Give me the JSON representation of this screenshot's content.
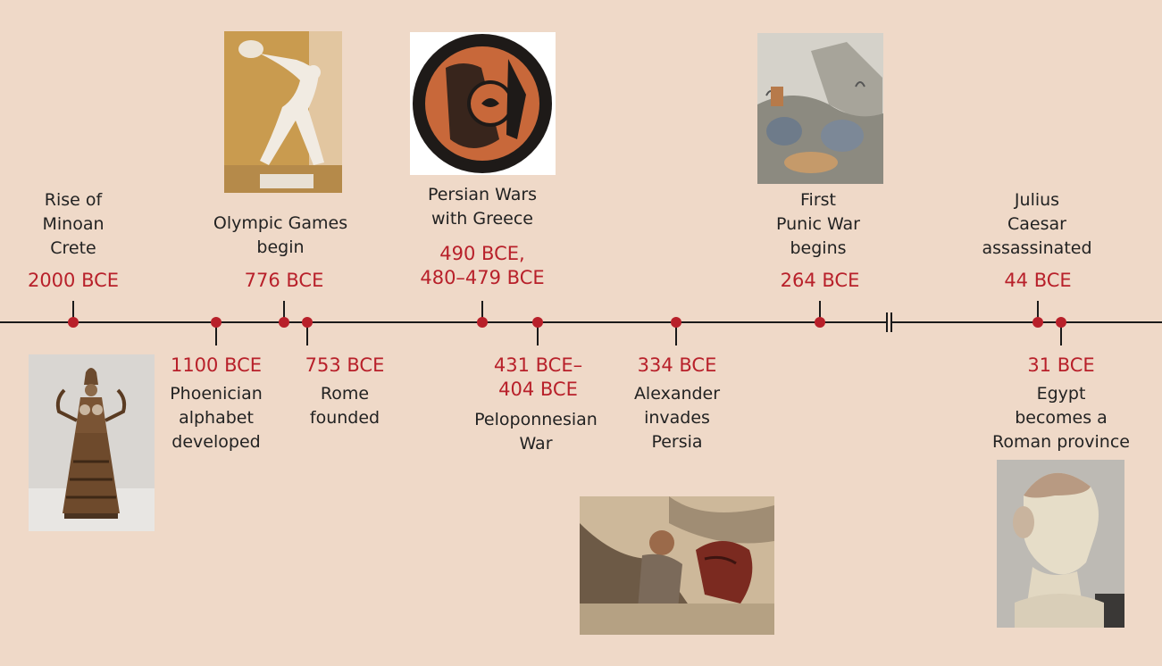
{
  "colors": {
    "background": "#efd9c8",
    "date_text": "#b8202a",
    "marker": "#b8202a",
    "axis": "#1a1a1a",
    "text": "#222222"
  },
  "events": [
    {
      "date": "2000 BCE",
      "lines": [
        "Rise of",
        "Minoan",
        "Crete"
      ]
    },
    {
      "date": "1100 BCE",
      "lines": [
        "Phoenician",
        "alphabet",
        "developed"
      ]
    },
    {
      "date": "776 BCE",
      "lines": [
        "Olympic Games",
        "begin"
      ]
    },
    {
      "date": "753 BCE",
      "lines": [
        "Rome",
        "founded"
      ]
    },
    {
      "date_lines": [
        "490 BCE,",
        "480–479 BCE"
      ],
      "lines": [
        "Persian Wars",
        "with Greece"
      ]
    },
    {
      "date_lines": [
        "431 BCE–",
        "404 BCE"
      ],
      "lines": [
        "Peloponnesian",
        "War"
      ]
    },
    {
      "date": "334 BCE",
      "lines": [
        "Alexander",
        "invades",
        "Persia"
      ]
    },
    {
      "date": "264 BCE",
      "lines": [
        "First",
        "Punic War",
        "begins"
      ]
    },
    {
      "date": "44 BCE",
      "lines": [
        "Julius",
        "Caesar",
        "assassinated"
      ]
    },
    {
      "date": "31 BCE",
      "lines": [
        "Egypt",
        "becomes a",
        "Roman province"
      ]
    }
  ],
  "images": {
    "snake_goddess": "snake goddess figurine photo",
    "discobolus": "discus thrower statue photo",
    "greek_vase": "red-figure painted plate",
    "hannibal": "engraving of elephants crossing mountains",
    "alexander_mosaic": "mosaic of Alexander on horseback",
    "cleopatra": "marble bust photo"
  }
}
